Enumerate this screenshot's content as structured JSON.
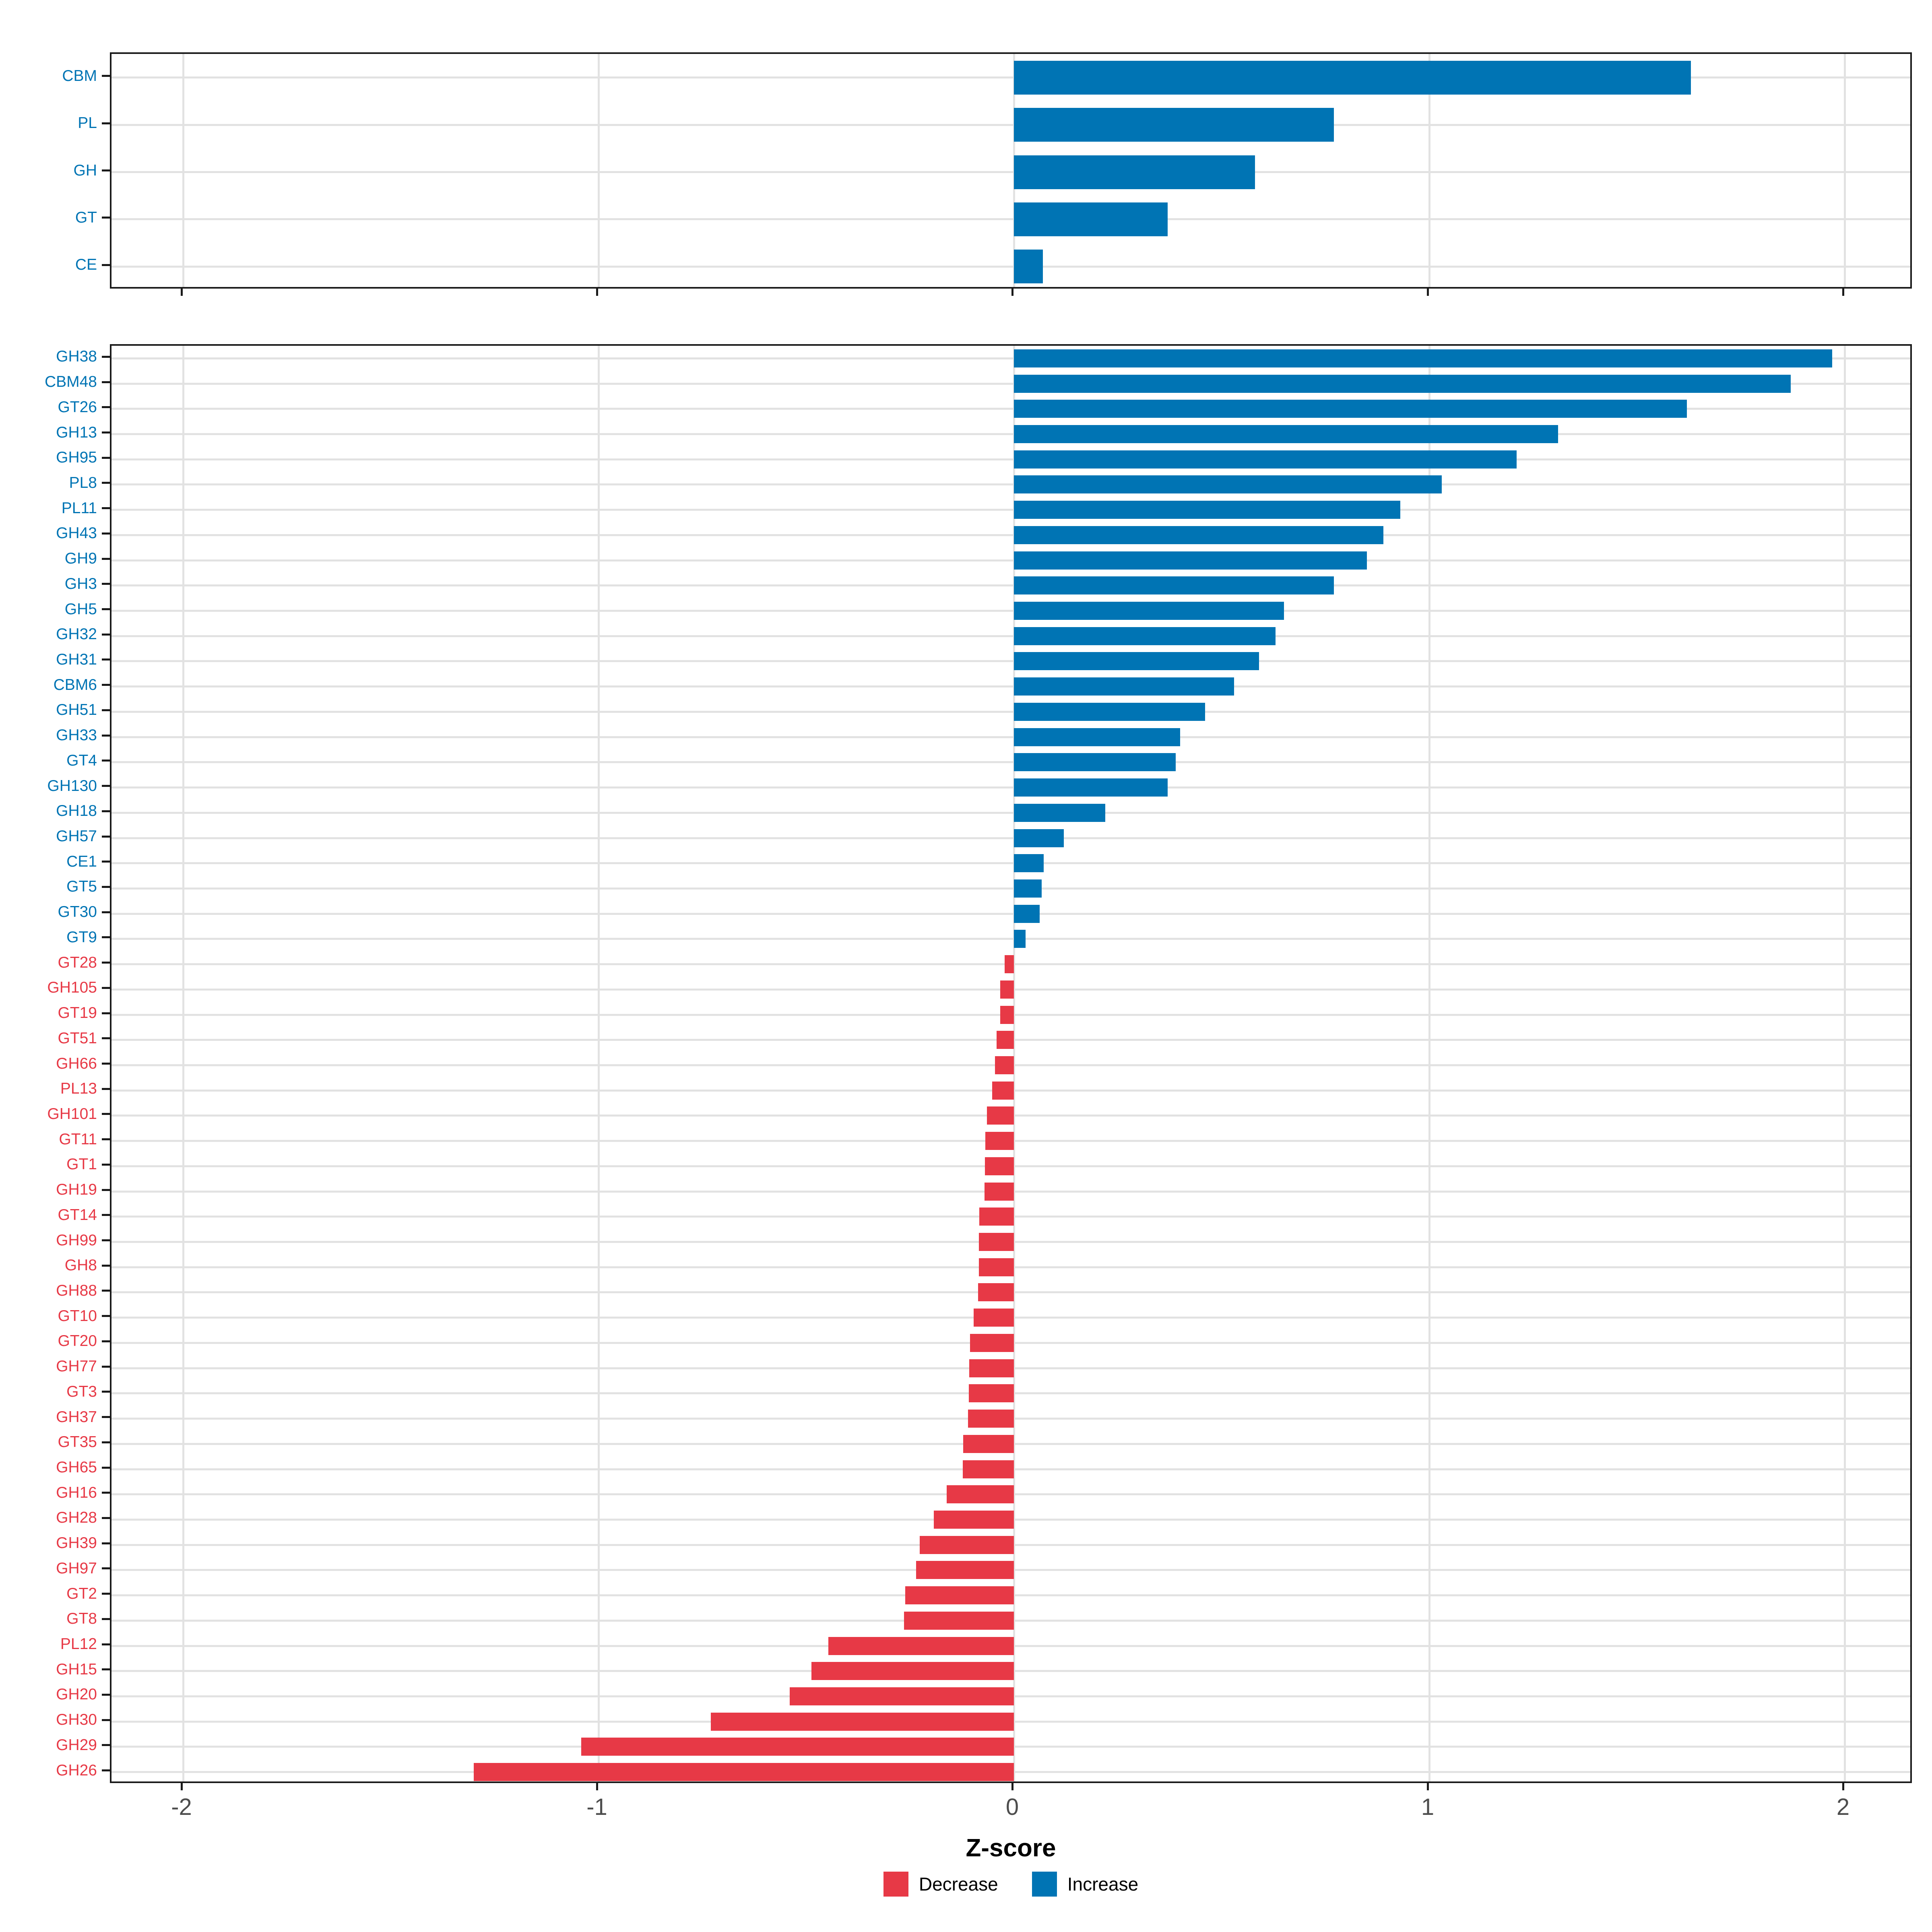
{
  "chart_data": [
    {
      "id": "cazyme_class_panel",
      "type": "bar",
      "orientation": "horizontal",
      "categories": [
        "CBM",
        "PL",
        "GH",
        "GT",
        "CE"
      ],
      "values": [
        1.63,
        0.77,
        0.58,
        0.37,
        0.07
      ],
      "x_ticks": [
        -2,
        -1,
        0,
        1,
        2
      ],
      "x_tick_labels": [
        "-2",
        "-1",
        "0",
        "1",
        "2"
      ],
      "x_tick_labels_shown": false,
      "xlim": [
        -2.17,
        2.17
      ],
      "xlabel": "",
      "grid": "major",
      "bar_color_rule": "blue if increase (value >= 0), red if decrease (value < 0)"
    },
    {
      "id": "cazyme_family_panel",
      "type": "bar",
      "orientation": "horizontal",
      "categories": [
        "GH38",
        "CBM48",
        "GT26",
        "GH13",
        "GH95",
        "PL8",
        "PL11",
        "GH43",
        "GH9",
        "GH3",
        "GH5",
        "GH32",
        "GH31",
        "CBM6",
        "GH51",
        "GH33",
        "GT4",
        "GH130",
        "GH18",
        "GH57",
        "CE1",
        "GT5",
        "GT30",
        "GT9",
        "GT28",
        "GH105",
        "GT19",
        "GT51",
        "GH66",
        "PL13",
        "GH101",
        "GT11",
        "GT1",
        "GH19",
        "GT14",
        "GH99",
        "GH8",
        "GH88",
        "GT10",
        "GT20",
        "GH77",
        "GT3",
        "GH37",
        "GT35",
        "GH65",
        "GH16",
        "GH28",
        "GH39",
        "GH97",
        "GT2",
        "GT8",
        "PL12",
        "GH15",
        "GH20",
        "GH30",
        "GH29",
        "GH26"
      ],
      "values": [
        1.97,
        1.87,
        1.62,
        1.31,
        1.21,
        1.03,
        0.93,
        0.89,
        0.85,
        0.77,
        0.65,
        0.63,
        0.59,
        0.53,
        0.46,
        0.4,
        0.39,
        0.37,
        0.22,
        0.12,
        0.072,
        0.067,
        0.062,
        0.028,
        -0.022,
        -0.033,
        -0.033,
        -0.042,
        -0.046,
        -0.052,
        -0.065,
        -0.069,
        -0.07,
        -0.071,
        -0.083,
        -0.084,
        -0.084,
        -0.086,
        -0.097,
        -0.106,
        -0.108,
        -0.109,
        -0.11,
        -0.122,
        -0.123,
        -0.162,
        -0.193,
        -0.227,
        -0.235,
        -0.262,
        -0.265,
        -0.447,
        -0.487,
        -0.54,
        -0.73,
        -1.042,
        -1.3
      ],
      "x_ticks": [
        -2,
        -1,
        0,
        1,
        2
      ],
      "x_tick_labels": [
        "-2",
        "-1",
        "0",
        "1",
        "2"
      ],
      "x_tick_labels_shown": true,
      "xlim": [
        -2.17,
        2.17
      ],
      "xlabel": "Z-score",
      "grid": "major",
      "legend_position": "bottom"
    }
  ],
  "legend": {
    "items": [
      {
        "label": "Decrease",
        "color": "#e73946"
      },
      {
        "label": "Increase",
        "color": "#0074b4"
      }
    ]
  },
  "colors": {
    "increase": "#0074b4",
    "decrease": "#e73946",
    "gridline": "#e2e2e2",
    "axis_text": "#4d4d4d",
    "panel_border": "#1a1a1a"
  }
}
